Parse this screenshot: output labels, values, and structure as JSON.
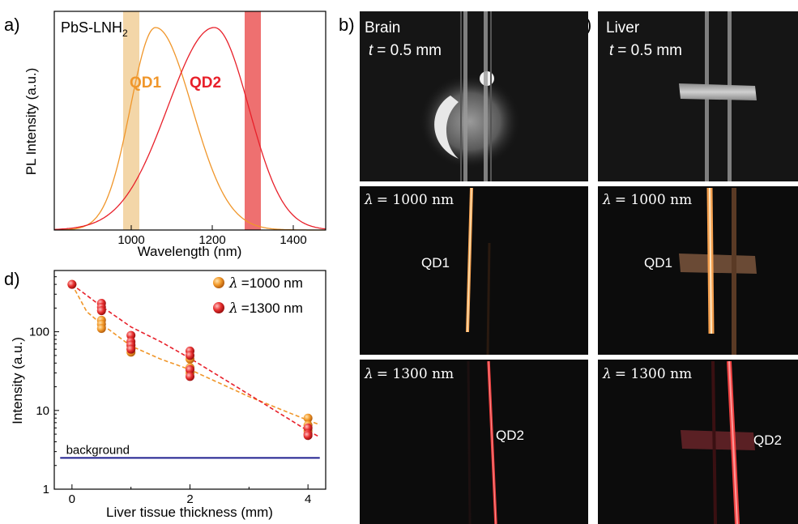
{
  "panels": {
    "a": "a)",
    "b": "b)",
    "c": "c)",
    "d": "d)"
  },
  "colors": {
    "qd1": "#f0962a",
    "qd2": "#e8202a",
    "band1": "#f3d6a8",
    "band2": "#ee7070",
    "background_line": "#1f1f8f",
    "qd1_marker": "#f39a2a",
    "qd2_marker": "#e83030"
  },
  "chart_data": [
    {
      "type": "line",
      "title": "PbS-LNH",
      "title_subscript": "2",
      "xlabel": "Wavelength (nm)",
      "ylabel": "PL Intensity (a.u.)",
      "xlim": [
        810,
        1480
      ],
      "ylim": [
        0,
        1.08
      ],
      "xticks": [
        1000,
        1200,
        1400
      ],
      "yticks_shown": false,
      "bands": [
        {
          "from": 980,
          "to": 1020,
          "color": "#f3d6a8"
        },
        {
          "from": 1280,
          "to": 1320,
          "color": "#ee7070"
        }
      ],
      "series": [
        {
          "name": "QD1",
          "peak": 1060,
          "sigma_left": 62,
          "sigma_right": 90,
          "amplitude": 1.0
        },
        {
          "name": "QD2",
          "peak": 1205,
          "sigma_left": 115,
          "sigma_right": 85,
          "amplitude": 1.0
        }
      ]
    },
    {
      "type": "scatter",
      "xlabel": "Liver tissue thickness (mm)",
      "ylabel": "Intensity (a.u.)",
      "xlim": [
        -0.3,
        4.3
      ],
      "ylim": [
        1,
        600
      ],
      "yscale": "log",
      "xticks": [
        0,
        2,
        4
      ],
      "yticks": [
        1,
        10,
        100
      ],
      "background": {
        "label": "background",
        "value": 2.5
      },
      "legend": {
        "position": "top-right",
        "prefix": "λ",
        "entries": [
          "=1000 nm",
          "=1300 nm"
        ]
      },
      "series": [
        {
          "name": "λ =1000 nm",
          "x": [
            0,
            0.5,
            0.5,
            0.5,
            1,
            1,
            1,
            2,
            2,
            2,
            4,
            4,
            4
          ],
          "y": [
            400,
            140,
            125,
            110,
            60,
            55,
            66,
            45,
            35,
            30,
            8,
            6.5,
            5.5
          ],
          "fit": [
            [
              0,
              400
            ],
            [
              0.25,
              180
            ],
            [
              0.5,
              125
            ],
            [
              1,
              66
            ],
            [
              1.5,
              45
            ],
            [
              2,
              33
            ],
            [
              3,
              15
            ],
            [
              4,
              7.5
            ],
            [
              4.2,
              6.6
            ]
          ]
        },
        {
          "name": "λ =1300 nm",
          "x": [
            0,
            0.5,
            0.5,
            0.5,
            1,
            1,
            1,
            1,
            2,
            2,
            2,
            2,
            4,
            4,
            4
          ],
          "y": [
            400,
            230,
            205,
            185,
            90,
            75,
            68,
            60,
            57,
            50,
            33,
            27,
            6,
            5,
            4.8
          ],
          "fit": [
            [
              0,
              400
            ],
            [
              0.5,
              210
            ],
            [
              1,
              115
            ],
            [
              1.5,
              75
            ],
            [
              2,
              46
            ],
            [
              3,
              16
            ],
            [
              4,
              5.5
            ],
            [
              4.2,
              4.6
            ]
          ]
        }
      ]
    }
  ],
  "photos": {
    "brain": {
      "title": "Brain",
      "thickness_var": "t",
      "thickness_value": "= 0.5 mm"
    },
    "liver": {
      "title": "Liver",
      "thickness_var": "t",
      "thickness_value": "= 0.5 mm"
    },
    "lambda_symbol": "λ",
    "lambda_1000": "= 1000 nm",
    "lambda_1300": "= 1300 nm",
    "qd1": "QD1",
    "qd2": "QD2"
  }
}
